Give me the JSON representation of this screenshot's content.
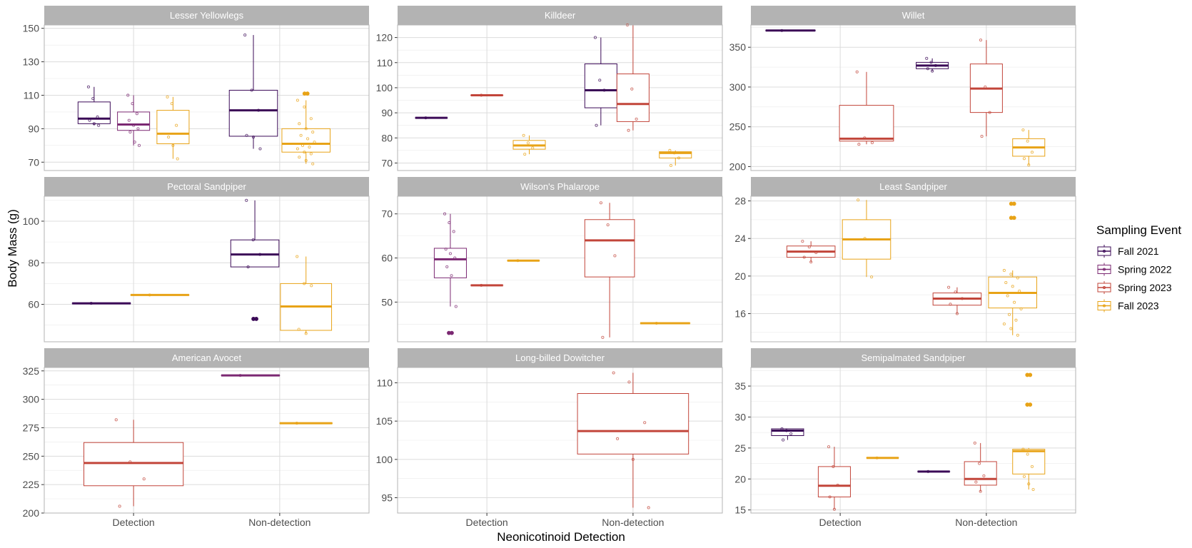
{
  "chart_data": {
    "type": "boxplot",
    "facet_type": "facet_wrap",
    "xlabel": "Neonicotinoid Detection",
    "ylabel": "Body Mass (g)",
    "categories": [
      "Detection",
      "Non-detection"
    ],
    "legend": {
      "title": "Sampling Event",
      "position": "right",
      "items": [
        {
          "name": "Fall 2021",
          "color": "#3b0a57"
        },
        {
          "name": "Spring 2022",
          "color": "#7b2872"
        },
        {
          "name": "Spring 2023",
          "color": "#c2453a"
        },
        {
          "name": "Fall 2023",
          "color": "#e8a317"
        }
      ]
    },
    "colors": {
      "fall2021": "#3b0a57",
      "spring2022": "#7b2872",
      "spring2023": "#c2453a",
      "fall2023": "#e8a317",
      "strip": "#b3b3b3",
      "grid": "#dcdcdc",
      "panel_border": "#b3b3b3"
    },
    "panels": [
      {
        "title": "Lesser Yellowlegs",
        "ylim": [
          65,
          152
        ],
        "yticks": [
          70,
          90,
          110,
          130,
          150
        ],
        "boxes": [
          {
            "group": "Detection",
            "series": 0,
            "pos": -0.27,
            "w": 0.22,
            "q1": 93,
            "median": 96,
            "q3": 106,
            "lw": 92,
            "uw": 115,
            "points": [
              115,
              108,
              97,
              95,
              93,
              92
            ]
          },
          {
            "group": "Detection",
            "series": 1,
            "pos": 0,
            "w": 0.22,
            "q1": 89,
            "median": 92.5,
            "q3": 100,
            "lw": 80,
            "uw": 110,
            "points": [
              110,
              105,
              99,
              95,
              92,
              90,
              88,
              82,
              80
            ]
          },
          {
            "group": "Detection",
            "series": 3,
            "pos": 0.27,
            "w": 0.22,
            "q1": 81,
            "median": 87,
            "q3": 101,
            "lw": 72,
            "uw": 109,
            "points": [
              109,
              105,
              92,
              85,
              80,
              72
            ]
          },
          {
            "group": "Non-detection",
            "series": 0,
            "pos": -0.18,
            "w": 0.33,
            "q1": 85.5,
            "median": 101,
            "q3": 113,
            "lw": 78,
            "uw": 146,
            "points": [
              146,
              113,
              101,
              86,
              85,
              78
            ]
          },
          {
            "group": "Non-detection",
            "series": 3,
            "pos": 0.18,
            "w": 0.33,
            "q1": 76,
            "median": 81,
            "q3": 90,
            "lw": 69,
            "uw": 107,
            "points": [
              107,
              103,
              96,
              93,
              90,
              88,
              86,
              84,
              82,
              80,
              79,
              78,
              76,
              75,
              73,
              71,
              69
            ],
            "outliers": [
              111,
              111
            ]
          }
        ]
      },
      {
        "title": "Killdeer",
        "ylim": [
          67,
          125
        ],
        "yticks": [
          70,
          80,
          90,
          100,
          110,
          120
        ],
        "boxes": [
          {
            "group": "Detection",
            "series": 0,
            "pos": -0.38,
            "w": 0.22,
            "q1": 88,
            "median": 88,
            "q3": 88,
            "lw": 88,
            "uw": 88,
            "points": [
              88
            ]
          },
          {
            "group": "Detection",
            "series": 2,
            "pos": 0,
            "w": 0.22,
            "q1": 97,
            "median": 97,
            "q3": 97,
            "lw": 97,
            "uw": 97,
            "points": [
              97
            ]
          },
          {
            "group": "Detection",
            "series": 3,
            "pos": 0.29,
            "w": 0.22,
            "q1": 75.5,
            "median": 77,
            "q3": 79,
            "lw": 73.5,
            "uw": 81,
            "points": [
              81,
              78,
              76,
              73.5
            ]
          },
          {
            "group": "Non-detection",
            "series": 0,
            "pos": -0.22,
            "w": 0.22,
            "q1": 92,
            "median": 99,
            "q3": 109.5,
            "lw": 85,
            "uw": 120,
            "points": [
              120,
              103,
              99,
              85
            ]
          },
          {
            "group": "Non-detection",
            "series": 2,
            "pos": 0,
            "w": 0.22,
            "q1": 86.5,
            "median": 93.5,
            "q3": 105.5,
            "lw": 83,
            "uw": 125,
            "points": [
              125,
              99.5,
              87.5,
              83
            ]
          },
          {
            "group": "Non-detection",
            "series": 3,
            "pos": 0.29,
            "w": 0.22,
            "q1": 72,
            "median": 74,
            "q3": 74.5,
            "lw": 69,
            "uw": 75,
            "points": [
              75,
              74,
              72,
              69
            ]
          }
        ]
      },
      {
        "title": "Willet",
        "ylim": [
          195,
          378
        ],
        "yticks": [
          200,
          250,
          300,
          350
        ],
        "boxes": [
          {
            "group": "Detection",
            "series": 0,
            "pos": -0.34,
            "w": 0.34,
            "q1": 371,
            "median": 371,
            "q3": 371,
            "lw": 371,
            "uw": 371,
            "points": [
              371
            ]
          },
          {
            "group": "Detection",
            "series": 2,
            "pos": 0.18,
            "w": 0.37,
            "q1": 232,
            "median": 235,
            "q3": 277,
            "lw": 228,
            "uw": 319,
            "points": [
              319,
              236,
              230,
              228
            ]
          },
          {
            "group": "Non-detection",
            "series": 0,
            "pos": -0.37,
            "w": 0.22,
            "q1": 323,
            "median": 327,
            "q3": 331,
            "lw": 320,
            "uw": 336,
            "points": [
              336,
              331,
              327,
              323,
              320
            ]
          },
          {
            "group": "Non-detection",
            "series": 2,
            "pos": 0,
            "w": 0.22,
            "q1": 268,
            "median": 298,
            "q3": 329,
            "lw": 238,
            "uw": 359,
            "points": [
              359,
              300,
              268,
              238
            ]
          },
          {
            "group": "Non-detection",
            "series": 3,
            "pos": 0.29,
            "w": 0.22,
            "q1": 213,
            "median": 224,
            "q3": 235,
            "lw": 202,
            "uw": 246,
            "points": [
              246,
              232,
              218,
              210,
              202
            ]
          }
        ]
      },
      {
        "title": "Pectoral Sandpiper",
        "ylim": [
          42,
          112
        ],
        "yticks": [
          60,
          80,
          100
        ],
        "boxes": [
          {
            "group": "Detection",
            "series": 0,
            "pos": -0.22,
            "w": 0.4,
            "q1": 60.5,
            "median": 60.5,
            "q3": 60.5,
            "lw": 60.5,
            "uw": 60.5,
            "points": [
              60.5
            ]
          },
          {
            "group": "Detection",
            "series": 3,
            "pos": 0.18,
            "w": 0.4,
            "q1": 64.5,
            "median": 64.5,
            "q3": 64.5,
            "lw": 64.5,
            "uw": 64.5,
            "points": [
              64.5
            ]
          },
          {
            "group": "Non-detection",
            "series": 0,
            "pos": -0.17,
            "w": 0.33,
            "q1": 78,
            "median": 84,
            "q3": 91,
            "lw": 78,
            "uw": 110,
            "points": [
              110,
              91,
              84,
              78
            ],
            "outliers": [
              53,
              53
            ]
          },
          {
            "group": "Non-detection",
            "series": 3,
            "pos": 0.18,
            "w": 0.35,
            "q1": 47.5,
            "median": 59,
            "q3": 70,
            "lw": 46,
            "uw": 83,
            "points": [
              83,
              70,
              69,
              48,
              46
            ]
          }
        ]
      },
      {
        "title": "Wilson's Phalarope",
        "ylim": [
          41,
          74
        ],
        "yticks": [
          50,
          60,
          70
        ],
        "boxes": [
          {
            "group": "Detection",
            "series": 1,
            "pos": -0.25,
            "w": 0.22,
            "q1": 55.5,
            "median": 59.7,
            "q3": 62.2,
            "lw": 49,
            "uw": 70,
            "points": [
              70,
              68,
              66,
              62,
              61,
              60,
              58,
              56,
              49
            ],
            "outliers": [
              43,
              43
            ]
          },
          {
            "group": "Detection",
            "series": 2,
            "pos": 0,
            "w": 0.22,
            "q1": 53.8,
            "median": 53.8,
            "q3": 53.8,
            "lw": 53.8,
            "uw": 53.8,
            "points": [
              53.8
            ]
          },
          {
            "group": "Detection",
            "series": 3,
            "pos": 0.25,
            "w": 0.22,
            "q1": 59.4,
            "median": 59.4,
            "q3": 59.4,
            "lw": 59.4,
            "uw": 59.4,
            "points": [
              59.4
            ]
          },
          {
            "group": "Non-detection",
            "series": 2,
            "pos": -0.16,
            "w": 0.34,
            "q1": 55.7,
            "median": 64,
            "q3": 68.7,
            "lw": 42,
            "uw": 72.5,
            "points": [
              72.5,
              67.5,
              60.5,
              42
            ]
          },
          {
            "group": "Non-detection",
            "series": 3,
            "pos": 0.22,
            "w": 0.34,
            "q1": 45.2,
            "median": 45.2,
            "q3": 45.2,
            "lw": 45.2,
            "uw": 45.2,
            "points": [
              45.2
            ]
          }
        ]
      },
      {
        "title": "Least Sandpiper",
        "ylim": [
          13,
          28.5
        ],
        "yticks": [
          16,
          20,
          24,
          28
        ],
        "boxes": [
          {
            "group": "Detection",
            "series": 2,
            "pos": -0.2,
            "w": 0.33,
            "q1": 22,
            "median": 22.6,
            "q3": 23.2,
            "lw": 21.5,
            "uw": 23.7,
            "points": [
              23.7,
              23.1,
              22.5,
              22,
              21.5
            ]
          },
          {
            "group": "Detection",
            "series": 3,
            "pos": 0.18,
            "w": 0.33,
            "q1": 21.8,
            "median": 23.9,
            "q3": 26,
            "lw": 19.9,
            "uw": 28.1,
            "points": [
              28.1,
              24,
              19.9
            ]
          },
          {
            "group": "Non-detection",
            "series": 2,
            "pos": -0.2,
            "w": 0.33,
            "q1": 16.9,
            "median": 17.6,
            "q3": 18.2,
            "lw": 16,
            "uw": 18.8,
            "points": [
              18.8,
              18.3,
              17.6,
              17,
              16
            ]
          },
          {
            "group": "Non-detection",
            "series": 3,
            "pos": 0.18,
            "w": 0.33,
            "q1": 16.6,
            "median": 18.2,
            "q3": 19.9,
            "lw": 13.7,
            "uw": 20.6,
            "points": [
              20.6,
              20.2,
              19.8,
              19.3,
              18.9,
              18.4,
              17.9,
              17.2,
              16.5,
              15.9,
              15.3,
              14.9,
              14.4,
              13.7
            ],
            "outliers": [
              27.7,
              27.7,
              26.2,
              26.2
            ]
          }
        ]
      },
      {
        "title": "American Avocet",
        "ylim": [
          200,
          328
        ],
        "yticks": [
          200,
          225,
          250,
          275,
          300,
          325
        ],
        "boxes": [
          {
            "group": "Detection",
            "series": 2,
            "pos": 0,
            "w": 0.68,
            "q1": 224,
            "median": 244,
            "q3": 262,
            "lw": 206,
            "uw": 282,
            "points": [
              282,
              245,
              230,
              206
            ]
          },
          {
            "group": "Non-detection",
            "series": 1,
            "pos": -0.2,
            "w": 0.4,
            "q1": 321,
            "median": 321,
            "q3": 321,
            "lw": 321,
            "uw": 321,
            "points": [
              321
            ]
          },
          {
            "group": "Non-detection",
            "series": 3,
            "pos": 0.18,
            "w": 0.36,
            "q1": 279,
            "median": 279,
            "q3": 279,
            "lw": 279,
            "uw": 279,
            "points": [
              279
            ]
          }
        ]
      },
      {
        "title": "Long-billed Dowitcher",
        "ylim": [
          93,
          112
        ],
        "yticks": [
          95,
          100,
          105,
          110
        ],
        "boxes": [
          {
            "group": "Non-detection",
            "series": 2,
            "pos": 0,
            "w": 0.76,
            "q1": 100.7,
            "median": 103.7,
            "q3": 108.6,
            "lw": 93.7,
            "uw": 111.3,
            "points": [
              111.3,
              110.1,
              104.8,
              102.7,
              100,
              93.7
            ]
          }
        ]
      },
      {
        "title": "Semipalmated Sandpiper",
        "ylim": [
          14.5,
          38
        ],
        "yticks": [
          15,
          20,
          25,
          30,
          35
        ],
        "boxes": [
          {
            "group": "Detection",
            "series": 0,
            "pos": -0.36,
            "w": 0.22,
            "q1": 27,
            "median": 27.8,
            "q3": 28.1,
            "lw": 26.3,
            "uw": 28.1,
            "points": [
              28.1,
              27.8,
              27.3,
              26.3
            ]
          },
          {
            "group": "Detection",
            "series": 2,
            "pos": -0.04,
            "w": 0.22,
            "q1": 17.1,
            "median": 18.9,
            "q3": 22,
            "lw": 15.1,
            "uw": 25.2,
            "points": [
              25.2,
              22,
              19,
              17.1,
              15.1
            ]
          },
          {
            "group": "Detection",
            "series": 3,
            "pos": 0.29,
            "w": 0.22,
            "q1": 23.4,
            "median": 23.4,
            "q3": 23.4,
            "lw": 23.4,
            "uw": 23.4,
            "points": [
              23.4
            ]
          },
          {
            "group": "Non-detection",
            "series": 0,
            "pos": -0.36,
            "w": 0.22,
            "q1": 21.2,
            "median": 21.2,
            "q3": 21.2,
            "lw": 21.2,
            "uw": 21.2,
            "points": [
              21.2
            ]
          },
          {
            "group": "Non-detection",
            "series": 2,
            "pos": -0.04,
            "w": 0.22,
            "q1": 19,
            "median": 20,
            "q3": 22.8,
            "lw": 18,
            "uw": 25.8,
            "points": [
              25.8,
              22.5,
              20.5,
              19.5,
              18
            ]
          },
          {
            "group": "Non-detection",
            "series": 3,
            "pos": 0.29,
            "w": 0.22,
            "q1": 20.8,
            "median": 24.5,
            "q3": 24.8,
            "lw": 18.3,
            "uw": 25,
            "points": [
              24.8,
              24,
              22,
              20.4,
              19.2,
              18.3
            ],
            "outliers": [
              36.8,
              36.8,
              32,
              32
            ]
          }
        ]
      }
    ]
  }
}
